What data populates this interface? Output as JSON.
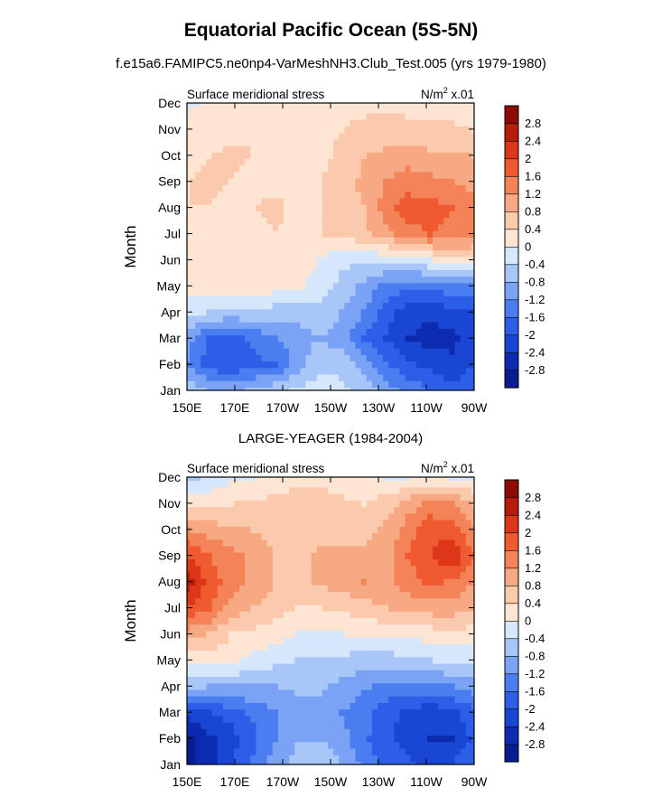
{
  "figure": {
    "title": "Equatorial Pacific Ocean (5S-5N)",
    "subtitle": "f.e15a6.FAMIPC5.ne0np4-VarMeshNH3.Club_Test.005 (yrs 1979-1980)"
  },
  "chart_data": [
    {
      "type": "heatmap",
      "title": "",
      "left_label": "Surface meridional stress",
      "right_label": "N/m",
      "right_label_sup": "2",
      "right_label_suffix": " x.01",
      "ylabel": "Month",
      "xlabel": "",
      "x_ticks": [
        "150E",
        "170E",
        "170W",
        "150W",
        "130W",
        "110W",
        "90W"
      ],
      "y_ticks": [
        "Jan",
        "Feb",
        "Mar",
        "Apr",
        "May",
        "Jun",
        "Jul",
        "Aug",
        "Sep",
        "Oct",
        "Nov",
        "Dec"
      ],
      "colorbar_labels": [
        "-2.8",
        "-2.4",
        "-2",
        "-1.6",
        "-1.2",
        "-0.8",
        "-0.4",
        "0",
        "0.4",
        "0.8",
        "1.2",
        "1.6",
        "2",
        "2.4",
        "2.8"
      ],
      "colors": [
        "#081d8f",
        "#0c2bb0",
        "#1a46d4",
        "#2d5ee8",
        "#4a7df0",
        "#7aa3f5",
        "#a9c6f8",
        "#d6e6fb",
        "#fde5d3",
        "#fbcaad",
        "#f7a983",
        "#f58358",
        "#ef5a30",
        "#dd3719",
        "#b81d0c",
        "#8a0c05"
      ],
      "values": [
        [
          -0.5,
          -0.8,
          -0.9,
          -0.7,
          -0.5,
          -0.3,
          -0.2,
          -0.3,
          -0.5,
          -1.0,
          -1.3,
          -1.6,
          -1.8,
          -1.7
        ],
        [
          -1.2,
          -1.8,
          -1.9,
          -1.7,
          -1.6,
          -1.0,
          -0.5,
          -0.5,
          -1.0,
          -1.5,
          -1.9,
          -2.1,
          -2.3,
          -2.0
        ],
        [
          -1.0,
          -1.7,
          -1.8,
          -1.5,
          -1.2,
          -1.0,
          -0.8,
          -1.0,
          -1.6,
          -2.0,
          -2.4,
          -2.6,
          -2.5,
          -2.2
        ],
        [
          -0.2,
          -0.4,
          -0.5,
          -0.5,
          -0.6,
          -0.6,
          -0.5,
          -0.8,
          -1.2,
          -1.8,
          -2.2,
          -2.3,
          -2.1,
          -2.0
        ],
        [
          0.2,
          0.3,
          0.3,
          0.2,
          0.2,
          0.1,
          -0.2,
          -0.5,
          -0.9,
          -1.3,
          -1.5,
          -1.5,
          -1.3,
          -1.2
        ],
        [
          0.2,
          0.4,
          0.4,
          0.3,
          0.4,
          0.2,
          0.0,
          -0.3,
          -0.3,
          -0.3,
          -0.2,
          0.0,
          0.2,
          0.3
        ],
        [
          0.3,
          0.4,
          0.4,
          0.3,
          0.4,
          0.3,
          0.4,
          0.5,
          0.7,
          1.0,
          1.4,
          1.6,
          1.5,
          1.3
        ],
        [
          0.4,
          0.4,
          0.3,
          0.4,
          0.5,
          0.3,
          0.4,
          0.6,
          0.8,
          1.4,
          1.8,
          1.8,
          1.6,
          1.3
        ],
        [
          0.4,
          0.5,
          0.4,
          0.3,
          0.3,
          0.3,
          0.4,
          0.6,
          0.9,
          1.2,
          1.4,
          1.3,
          1.2,
          1.1
        ],
        [
          0.3,
          0.4,
          0.5,
          0.4,
          0.3,
          0.3,
          0.3,
          0.5,
          0.8,
          0.9,
          1.0,
          0.9,
          0.9,
          0.8
        ],
        [
          0.2,
          0.2,
          0.3,
          0.4,
          0.4,
          0.3,
          0.3,
          0.4,
          0.5,
          0.6,
          0.6,
          0.5,
          0.5,
          0.4
        ],
        [
          -0.1,
          0.1,
          0.2,
          0.3,
          0.3,
          0.3,
          0.3,
          0.3,
          0.3,
          0.3,
          0.2,
          0.2,
          0.2,
          0.1
        ]
      ]
    },
    {
      "type": "heatmap",
      "title": "LARGE-YEAGER (1984-2004)",
      "left_label": "Surface meridional stress",
      "right_label": "N/m",
      "right_label_sup": "2",
      "right_label_suffix": " x.01",
      "ylabel": "Month",
      "xlabel": "",
      "x_ticks": [
        "150E",
        "170E",
        "170W",
        "150W",
        "130W",
        "110W",
        "90W"
      ],
      "y_ticks": [
        "Jan",
        "Feb",
        "Mar",
        "Apr",
        "May",
        "Jun",
        "Jul",
        "Aug",
        "Sep",
        "Oct",
        "Nov",
        "Dec"
      ],
      "colorbar_labels": [
        "-2.8",
        "-2.4",
        "-2",
        "-1.6",
        "-1.2",
        "-0.8",
        "-0.4",
        "0",
        "0.4",
        "0.8",
        "1.2",
        "1.6",
        "2",
        "2.4",
        "2.8"
      ],
      "colors": [
        "#081d8f",
        "#0c2bb0",
        "#1a46d4",
        "#2d5ee8",
        "#4a7df0",
        "#7aa3f5",
        "#a9c6f8",
        "#d6e6fb",
        "#fde5d3",
        "#fbcaad",
        "#f7a983",
        "#f58358",
        "#ef5a30",
        "#dd3719",
        "#b81d0c",
        "#8a0c05"
      ],
      "values": [
        [
          -2.9,
          -2.6,
          -2.0,
          -1.5,
          -1.0,
          -0.6,
          -0.5,
          -0.8,
          -1.3,
          -1.7,
          -1.9,
          -2.1,
          -2.0,
          -1.6
        ],
        [
          -3.0,
          -2.5,
          -2.2,
          -1.7,
          -1.2,
          -0.8,
          -0.8,
          -1.0,
          -1.5,
          -1.9,
          -2.2,
          -2.4,
          -2.4,
          -1.9
        ],
        [
          -2.2,
          -2.0,
          -1.8,
          -1.5,
          -1.2,
          -1.0,
          -1.0,
          -1.2,
          -1.5,
          -1.8,
          -2.1,
          -2.3,
          -2.1,
          -1.7
        ],
        [
          -0.6,
          -0.8,
          -0.8,
          -0.8,
          -0.8,
          -0.7,
          -0.7,
          -0.9,
          -1.1,
          -1.3,
          -1.4,
          -1.3,
          -1.2,
          -1.0
        ],
        [
          0.2,
          0.2,
          0.1,
          -0.1,
          -0.3,
          -0.4,
          -0.4,
          -0.5,
          -0.6,
          -0.6,
          -0.5,
          -0.4,
          -0.3,
          -0.3
        ],
        [
          1.0,
          0.8,
          0.4,
          0.3,
          0.2,
          0.0,
          -0.1,
          0.0,
          0.1,
          0.1,
          0.1,
          0.2,
          0.3,
          0.2
        ],
        [
          2.0,
          1.6,
          1.0,
          0.8,
          0.6,
          0.4,
          0.4,
          0.5,
          0.6,
          0.8,
          0.9,
          1.0,
          1.0,
          0.9
        ],
        [
          2.6,
          1.9,
          1.4,
          1.1,
          0.8,
          0.6,
          0.9,
          1.0,
          1.2,
          1.1,
          1.4,
          1.7,
          1.5,
          1.2
        ],
        [
          2.0,
          1.6,
          1.3,
          1.1,
          0.8,
          0.6,
          0.9,
          0.9,
          1.0,
          1.0,
          1.6,
          2.0,
          2.4,
          1.6
        ],
        [
          1.2,
          1.0,
          0.9,
          0.8,
          0.6,
          0.5,
          0.6,
          0.7,
          0.6,
          0.9,
          1.4,
          1.9,
          1.8,
          1.2
        ],
        [
          0.2,
          0.3,
          0.4,
          0.5,
          0.5,
          0.6,
          0.6,
          0.5,
          0.4,
          0.6,
          1.0,
          1.3,
          1.2,
          0.8
        ],
        [
          -0.5,
          -0.3,
          -0.1,
          0.0,
          0.2,
          0.3,
          0.3,
          0.2,
          0.1,
          0.0,
          0.0,
          0.1,
          0.0,
          -0.1
        ]
      ]
    }
  ]
}
